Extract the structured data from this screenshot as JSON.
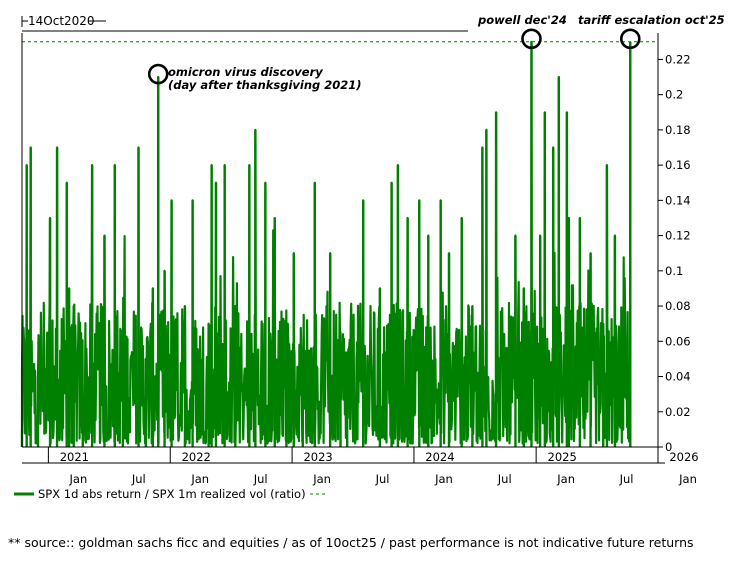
{
  "chart_data": {
    "type": "line",
    "top_label": "14Oct2020",
    "series": [
      {
        "name": "SPX 1d abs return / SPX 1m realized vol (ratio)",
        "color": "#008000",
        "points": [
          {
            "date": "2020-10-14",
            "value": 0.01
          },
          {
            "date": "2020-10-28",
            "value": 0.16
          },
          {
            "date": "2020-11-09",
            "value": 0.17
          },
          {
            "date": "2020-12-01",
            "value": 0.04
          },
          {
            "date": "2021-01-06",
            "value": 0.13
          },
          {
            "date": "2021-01-27",
            "value": 0.17
          },
          {
            "date": "2021-02-25",
            "value": 0.15
          },
          {
            "date": "2021-03-04",
            "value": 0.09
          },
          {
            "date": "2021-03-18",
            "value": 0.08
          },
          {
            "date": "2021-04-14",
            "value": 0.03
          },
          {
            "date": "2021-05-12",
            "value": 0.16
          },
          {
            "date": "2021-06-18",
            "value": 0.12
          },
          {
            "date": "2021-07-19",
            "value": 0.16
          },
          {
            "date": "2021-08-12",
            "value": 0.03
          },
          {
            "date": "2021-09-28",
            "value": 0.17
          },
          {
            "date": "2021-10-20",
            "value": 0.05
          },
          {
            "date": "2021-11-10",
            "value": 0.09
          },
          {
            "date": "2021-11-26",
            "value": 0.21
          },
          {
            "date": "2021-12-15",
            "value": 0.1
          },
          {
            "date": "2022-01-05",
            "value": 0.14
          },
          {
            "date": "2022-02-14",
            "value": 0.08
          },
          {
            "date": "2022-03-09",
            "value": 0.14
          },
          {
            "date": "2022-04-26",
            "value": 0.07
          },
          {
            "date": "2022-05-05",
            "value": 0.16
          },
          {
            "date": "2022-05-18",
            "value": 0.15
          },
          {
            "date": "2022-06-13",
            "value": 0.16
          },
          {
            "date": "2022-07-15",
            "value": 0.08
          },
          {
            "date": "2022-08-26",
            "value": 0.16
          },
          {
            "date": "2022-09-13",
            "value": 0.18
          },
          {
            "date": "2022-10-13",
            "value": 0.15
          },
          {
            "date": "2022-11-10",
            "value": 0.13
          },
          {
            "date": "2022-12-15",
            "value": 0.07
          },
          {
            "date": "2023-01-06",
            "value": 0.11
          },
          {
            "date": "2023-02-02",
            "value": 0.04
          },
          {
            "date": "2023-03-10",
            "value": 0.15
          },
          {
            "date": "2023-04-25",
            "value": 0.11
          },
          {
            "date": "2023-05-26",
            "value": 0.06
          },
          {
            "date": "2023-06-15",
            "value": 0.05
          },
          {
            "date": "2023-08-02",
            "value": 0.14
          },
          {
            "date": "2023-09-21",
            "value": 0.09
          },
          {
            "date": "2023-10-26",
            "value": 0.15
          },
          {
            "date": "2023-11-14",
            "value": 0.16
          },
          {
            "date": "2023-12-13",
            "value": 0.13
          },
          {
            "date": "2024-01-17",
            "value": 0.14
          },
          {
            "date": "2024-02-13",
            "value": 0.12
          },
          {
            "date": "2024-03-21",
            "value": 0.14
          },
          {
            "date": "2024-04-15",
            "value": 0.11
          },
          {
            "date": "2024-05-23",
            "value": 0.13
          },
          {
            "date": "2024-06-24",
            "value": 0.08
          },
          {
            "date": "2024-07-24",
            "value": 0.17
          },
          {
            "date": "2024-08-05",
            "value": 0.18
          },
          {
            "date": "2024-09-03",
            "value": 0.19
          },
          {
            "date": "2024-10-31",
            "value": 0.12
          },
          {
            "date": "2024-11-25",
            "value": 0.09
          },
          {
            "date": "2024-12-18",
            "value": 0.23
          },
          {
            "date": "2025-01-13",
            "value": 0.12
          },
          {
            "date": "2025-01-27",
            "value": 0.19
          },
          {
            "date": "2025-02-21",
            "value": 0.17
          },
          {
            "date": "2025-03-10",
            "value": 0.21
          },
          {
            "date": "2025-04-03",
            "value": 0.19
          },
          {
            "date": "2025-04-09",
            "value": 0.13
          },
          {
            "date": "2025-05-12",
            "value": 0.13
          },
          {
            "date": "2025-06-13",
            "value": 0.11
          },
          {
            "date": "2025-07-21",
            "value": 0.07
          },
          {
            "date": "2025-08-01",
            "value": 0.16
          },
          {
            "date": "2025-08-25",
            "value": 0.12
          },
          {
            "date": "2025-10-10",
            "value": 0.23
          }
        ]
      }
    ],
    "reference_line": {
      "value": 0.23,
      "style": "dashed"
    },
    "ylim": [
      0,
      0.235
    ],
    "xlim": [
      "2020-10-14",
      "2026-01-01"
    ],
    "y_ticks": [
      "0",
      "0.02",
      "0.04",
      "0.06",
      "0.08",
      "0.1",
      "0.12",
      "0.14",
      "0.16",
      "0.18",
      "0.2",
      "0.22"
    ],
    "x_ticks_major": [
      {
        "date": "2021-01-01",
        "label": "2021"
      },
      {
        "date": "2022-01-01",
        "label": "2022"
      },
      {
        "date": "2023-01-01",
        "label": "2023"
      },
      {
        "date": "2024-01-01",
        "label": "2024"
      },
      {
        "date": "2025-01-01",
        "label": "2025"
      },
      {
        "date": "2026-01-01",
        "label": "2026"
      }
    ],
    "x_ticks_minor": [
      {
        "date": "2021-01-01",
        "label": "Jan"
      },
      {
        "date": "2021-07-01",
        "label": "Jul"
      },
      {
        "date": "2022-01-01",
        "label": "Jan"
      },
      {
        "date": "2022-07-01",
        "label": "Jul"
      },
      {
        "date": "2023-01-01",
        "label": "Jan"
      },
      {
        "date": "2023-07-01",
        "label": "Jul"
      },
      {
        "date": "2024-01-01",
        "label": "Jan"
      },
      {
        "date": "2024-07-01",
        "label": "Jul"
      },
      {
        "date": "2025-01-01",
        "label": "Jan"
      },
      {
        "date": "2025-07-01",
        "label": "Jul"
      },
      {
        "date": "2026-01-01",
        "label": "Jan"
      }
    ],
    "annotations": [
      {
        "id": "omicron",
        "date": "2021-11-26",
        "value": 0.21,
        "lines": [
          "omicron virus discovery",
          "(day after thanksgiving 2021)"
        ]
      },
      {
        "id": "powell",
        "date": "2024-12-18",
        "value": 0.23,
        "lines": [
          "powell dec'24"
        ]
      },
      {
        "id": "tariff",
        "date": "2025-10-10",
        "value": 0.23,
        "lines": [
          "tariff escalation oct'25"
        ]
      }
    ],
    "legend": {
      "position": "bottom-left",
      "label": "SPX 1d abs return / SPX 1m realized vol (ratio)"
    }
  },
  "footnote": "** source:: goldman sachs ficc and equities / as of 10oct25 / past performance is not indicative future returns"
}
